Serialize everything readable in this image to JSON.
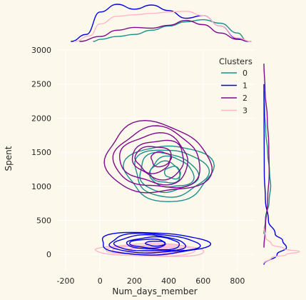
{
  "chart_data": {
    "type": "jointplot-kde",
    "xlabel": "Num_days_member",
    "ylabel": "Spent",
    "xlim": [
      -250,
      900
    ],
    "ylim": [
      -250,
      3000
    ],
    "x_ticks": [
      -200,
      0,
      200,
      400,
      600,
      800
    ],
    "y_ticks": [
      0,
      500,
      1000,
      1500,
      2000,
      2500,
      3000
    ],
    "grid": true,
    "legend": {
      "title": "Clusters",
      "placement": "upper-right"
    },
    "colors": {
      "background": "#fdf8ec",
      "grid": "#ffffff",
      "text": "#262626"
    },
    "series": [
      {
        "name": "0",
        "color": "#1a8f8a",
        "center": [
          400,
          1200
        ],
        "spread": [
          240,
          430
        ],
        "marginal_x": [
          [
            -40,
            0
          ],
          [
            0,
            0.03
          ],
          [
            100,
            0.07
          ],
          [
            200,
            0.1
          ],
          [
            300,
            0.16
          ],
          [
            400,
            0.22
          ],
          [
            500,
            0.28
          ],
          [
            600,
            0.31
          ],
          [
            700,
            0.26
          ],
          [
            800,
            0.12
          ],
          [
            860,
            0
          ]
        ],
        "marginal_y": [
          [
            300,
            0
          ],
          [
            500,
            0.04
          ],
          [
            800,
            0.14
          ],
          [
            1000,
            0.18
          ],
          [
            1200,
            0.15
          ],
          [
            1500,
            0.1
          ],
          [
            1800,
            0.05
          ],
          [
            2100,
            0.02
          ],
          [
            2400,
            0
          ]
        ]
      },
      {
        "name": "1",
        "color": "#0000e6",
        "center": [
          300,
          160
        ],
        "spread": [
          300,
          170
        ],
        "marginal_x": [
          [
            -170,
            0
          ],
          [
            -80,
            0.1
          ],
          [
            0,
            0.42
          ],
          [
            100,
            0.53
          ],
          [
            200,
            0.46
          ],
          [
            300,
            0.52
          ],
          [
            400,
            0.44
          ],
          [
            500,
            0.33
          ],
          [
            600,
            0.37
          ],
          [
            700,
            0.22
          ],
          [
            800,
            0.04
          ],
          [
            860,
            0
          ]
        ],
        "marginal_y": [
          [
            -150,
            0
          ],
          [
            0,
            0.35
          ],
          [
            100,
            0.6
          ],
          [
            200,
            0.5
          ],
          [
            300,
            0.3
          ],
          [
            500,
            0.12
          ],
          [
            800,
            0.04
          ],
          [
            1200,
            0.01
          ],
          [
            2500,
            0
          ]
        ]
      },
      {
        "name": "2",
        "color": "#7d0a8c",
        "center": [
          330,
          1400
        ],
        "spread": [
          300,
          520
        ],
        "marginal_x": [
          [
            -120,
            0
          ],
          [
            0,
            0.07
          ],
          [
            100,
            0.16
          ],
          [
            200,
            0.2
          ],
          [
            300,
            0.19
          ],
          [
            400,
            0.23
          ],
          [
            500,
            0.3
          ],
          [
            600,
            0.24
          ],
          [
            700,
            0.12
          ],
          [
            800,
            0.03
          ],
          [
            880,
            0
          ]
        ],
        "marginal_y": [
          [
            100,
            0
          ],
          [
            400,
            0.04
          ],
          [
            800,
            0.1
          ],
          [
            1200,
            0.14
          ],
          [
            1600,
            0.13
          ],
          [
            2000,
            0.09
          ],
          [
            2400,
            0.03
          ],
          [
            2800,
            0
          ]
        ]
      },
      {
        "name": "3",
        "color": "#ffb6c8",
        "center": [
          300,
          60
        ],
        "spread": [
          320,
          90
        ],
        "marginal_x": [
          [
            -150,
            0
          ],
          [
            -60,
            0.08
          ],
          [
            0,
            0.25
          ],
          [
            100,
            0.36
          ],
          [
            200,
            0.38
          ],
          [
            300,
            0.4
          ],
          [
            400,
            0.42
          ],
          [
            500,
            0.43
          ],
          [
            600,
            0.37
          ],
          [
            700,
            0.22
          ],
          [
            800,
            0.05
          ],
          [
            880,
            0
          ]
        ],
        "marginal_y": [
          [
            -130,
            0
          ],
          [
            -50,
            0.2
          ],
          [
            0,
            0.6
          ],
          [
            40,
            0.95
          ],
          [
            80,
            0.55
          ],
          [
            150,
            0.2
          ],
          [
            250,
            0.05
          ],
          [
            400,
            0
          ]
        ]
      }
    ]
  }
}
